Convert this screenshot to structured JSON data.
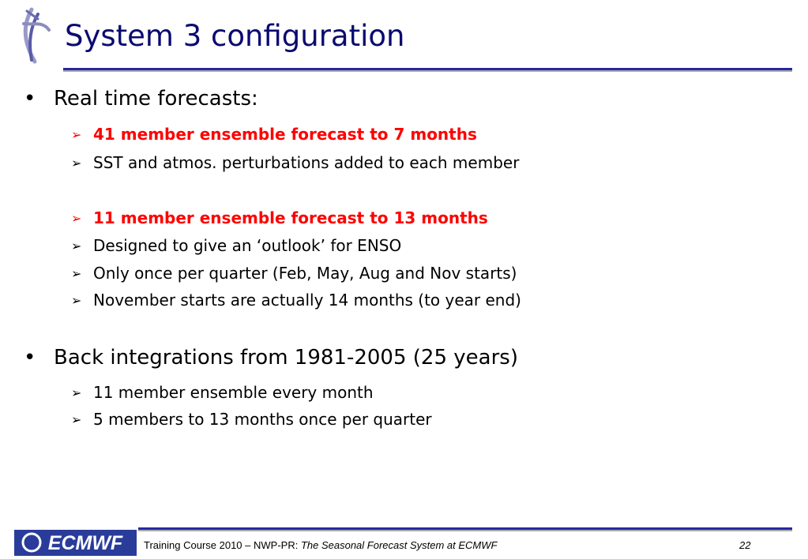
{
  "header": {
    "title": "System 3 configuration"
  },
  "bullets": [
    {
      "text": "Real time forecasts:",
      "items": [
        {
          "text": "41 member ensemble forecast to 7 months",
          "color": "#ff0000"
        },
        {
          "text": "SST and atmos. perturbations added to each member"
        },
        {
          "text": "11 member ensemble forecast to 13 months",
          "color": "#ff0000"
        },
        {
          "text": "Designed to give an ‘outlook’ for ENSO"
        },
        {
          "text": "Only once per quarter (Feb, May, Aug and Nov starts)"
        },
        {
          "text": "November starts are actually 14 months (to year end)"
        }
      ]
    },
    {
      "text": "Back integrations from 1981-2005 (25 years)",
      "items": [
        {
          "text": "11 member ensemble every month"
        },
        {
          "text": "5 members to 13 months once per quarter"
        }
      ]
    }
  ],
  "footer": {
    "logo": "ECMWF",
    "course": "Training Course 2010 – NWP-PR:",
    "subtitle": "The Seasonal Forecast System at ECMWF",
    "page": "22"
  }
}
